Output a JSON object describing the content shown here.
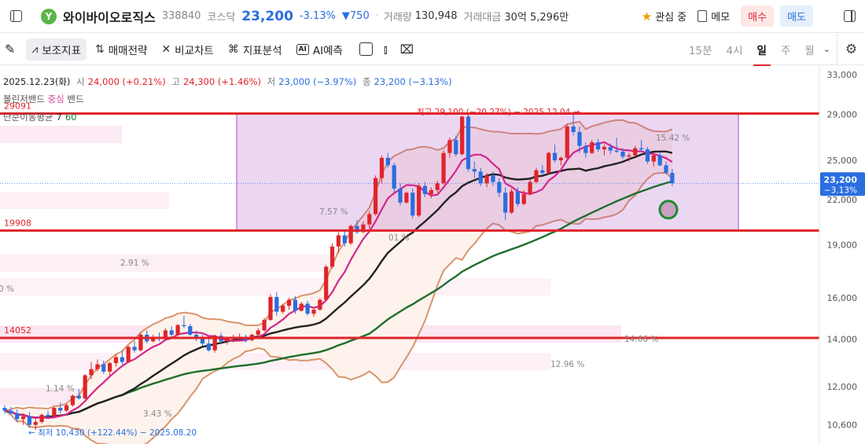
{
  "header": {
    "name": "와이바이오로직스",
    "code": "338840",
    "market": "코스닥",
    "price": "23,200",
    "change_pct": "-3.13%",
    "change_abs": "▼750",
    "volume_label": "거래량",
    "volume": "130,948",
    "amount_label": "거래대금",
    "amount": "30억 5,296만",
    "fav_label": "관심 중",
    "memo_label": "메모",
    "buy_label": "매수",
    "sell_label": "매도"
  },
  "toolbar": {
    "items": [
      "보조지표",
      "매매전략",
      "비교차트",
      "지표분석",
      "AI예측"
    ],
    "ai_badge": "AI",
    "periods": [
      "15분",
      "4시",
      "일",
      "주",
      "월"
    ],
    "active_period": "일"
  },
  "legend": {
    "date": "2025.12.23(화)",
    "open_label": "시",
    "open": "24,000 (+0.21%)",
    "high_label": "고",
    "high": "24,300 (+1.46%)",
    "low_label": "저",
    "low": "23,000 (−3.97%)",
    "close_label": "종",
    "close": "23,200 (−3.13%)",
    "bb_prefix": "볼린저밴드",
    "bb_mid": "중심",
    "bb_suffix": "밴드",
    "ma_label": "단순이동평균",
    "ma_short": "7",
    "ma_long": "60"
  },
  "colors": {
    "up": "#e0242a",
    "down": "#2a6ee0",
    "ma7": "#d4258f",
    "ma20": "#222222",
    "ma60": "#1e6e2c",
    "bb": "#d9946b",
    "box": "#a74bc4",
    "level": "#e0242a"
  },
  "chart_data": {
    "type": "candlestick",
    "ylim": [
      10000,
      33000
    ],
    "y_scale": "log",
    "y_ticks": [
      10600,
      12000,
      14000,
      16000,
      19000,
      22000,
      25000,
      29000,
      33000
    ],
    "y_tick_labels": [
      "10,600",
      "12,000",
      "14,000",
      "16,000",
      "19,000",
      "22,000",
      "25,000",
      "29,000",
      "33,000"
    ],
    "last_price_tag": "23,200",
    "last_change_tag": "−3.13%",
    "levels": [
      {
        "value": 29091,
        "label": "29091"
      },
      {
        "value": 19908,
        "label": "19908"
      },
      {
        "value": 14052,
        "label": "14052"
      }
    ],
    "annotations": [
      {
        "text": "최고 29,100 (−20.27%) − 2025.12.04 →"
      },
      {
        "text": "← 최저 10,430 (+122.44%) − 2025.08.20"
      },
      {
        "text": "15.42 %"
      },
      {
        "text": "7.57 %"
      },
      {
        "text": "2.91 %"
      },
      {
        "text": "14.66 %"
      },
      {
        "text": "12.96 %"
      },
      {
        "text": "1.14 %"
      },
      {
        "text": "3.43 %"
      },
      {
        "text": "0 %"
      },
      {
        "text": "01 %"
      }
    ],
    "candles": [
      [
        11200,
        11300,
        11000,
        11100
      ],
      [
        11100,
        11250,
        10950,
        11000
      ],
      [
        11000,
        11150,
        10700,
        10800
      ],
      [
        10800,
        11000,
        10600,
        10900
      ],
      [
        10900,
        11050,
        10500,
        10600
      ],
      [
        10600,
        10800,
        10430,
        10700
      ],
      [
        10700,
        11000,
        10650,
        10950
      ],
      [
        10950,
        11100,
        10850,
        10900
      ],
      [
        10900,
        11250,
        10850,
        11200
      ],
      [
        11200,
        11400,
        11000,
        11100
      ],
      [
        11100,
        11350,
        11050,
        11300
      ],
      [
        11300,
        11700,
        11250,
        11650
      ],
      [
        11650,
        11900,
        11500,
        11550
      ],
      [
        11550,
        12500,
        11500,
        12450
      ],
      [
        12450,
        13000,
        12300,
        12700
      ],
      [
        12700,
        13100,
        12600,
        12900
      ],
      [
        12900,
        13050,
        12500,
        12600
      ],
      [
        12600,
        13000,
        12450,
        12950
      ],
      [
        12950,
        13300,
        12800,
        13200
      ],
      [
        13200,
        13500,
        12900,
        13000
      ],
      [
        13000,
        13700,
        12950,
        13650
      ],
      [
        13650,
        13900,
        13400,
        13500
      ],
      [
        13500,
        14300,
        13450,
        14200
      ],
      [
        14200,
        14400,
        13800,
        13900
      ],
      [
        13900,
        14200,
        13850,
        14100
      ],
      [
        14100,
        14300,
        13900,
        14000
      ],
      [
        14000,
        14500,
        13950,
        14400
      ],
      [
        14400,
        14600,
        14100,
        14200
      ],
      [
        14200,
        14700,
        14150,
        14650
      ],
      [
        14650,
        15100,
        14500,
        14600
      ],
      [
        14600,
        14700,
        14150,
        14200
      ],
      [
        14200,
        14400,
        13900,
        14050
      ],
      [
        14050,
        14200,
        13700,
        13800
      ],
      [
        13800,
        14000,
        13450,
        13500
      ],
      [
        13500,
        14200,
        13400,
        14150
      ],
      [
        14150,
        14300,
        13800,
        13900
      ],
      [
        13900,
        14100,
        13750,
        14000
      ],
      [
        14000,
        14200,
        13850,
        14050
      ],
      [
        14050,
        14250,
        13900,
        14100
      ],
      [
        14100,
        14200,
        13850,
        13950
      ],
      [
        13950,
        14250,
        13900,
        14200
      ],
      [
        14200,
        14500,
        14100,
        14400
      ],
      [
        14400,
        15000,
        14350,
        14900
      ],
      [
        14900,
        16200,
        14850,
        16050
      ],
      [
        16050,
        16300,
        15100,
        15300
      ],
      [
        15300,
        15700,
        15200,
        15600
      ],
      [
        15600,
        16000,
        15400,
        15900
      ],
      [
        15900,
        16100,
        15200,
        15350
      ],
      [
        15350,
        15800,
        15300,
        15700
      ],
      [
        15700,
        15850,
        15100,
        15200
      ],
      [
        15200,
        15500,
        15050,
        15400
      ],
      [
        15400,
        16000,
        15350,
        15900
      ],
      [
        15900,
        17800,
        15850,
        17700
      ],
      [
        17700,
        19100,
        17600,
        18900
      ],
      [
        18900,
        19800,
        18500,
        19600
      ],
      [
        19600,
        19900,
        18900,
        19100
      ],
      [
        19100,
        20300,
        19000,
        20200
      ],
      [
        20200,
        20600,
        19700,
        19800
      ],
      [
        19800,
        20500,
        19750,
        20300
      ],
      [
        20300,
        21200,
        20000,
        21000
      ],
      [
        21000,
        23800,
        20900,
        23600
      ],
      [
        23600,
        25400,
        23200,
        25200
      ],
      [
        25200,
        25600,
        24400,
        24600
      ],
      [
        24600,
        24800,
        22500,
        22800
      ],
      [
        22800,
        23200,
        21600,
        21800
      ],
      [
        21800,
        22600,
        21700,
        22500
      ],
      [
        22500,
        22800,
        20700,
        20900
      ],
      [
        20900,
        23200,
        20800,
        23000
      ],
      [
        23000,
        23300,
        22200,
        22400
      ],
      [
        22400,
        22900,
        22100,
        22700
      ],
      [
        22700,
        23400,
        22500,
        23200
      ],
      [
        23200,
        25800,
        23100,
        25600
      ],
      [
        25600,
        26900,
        25200,
        26700
      ],
      [
        26700,
        27100,
        25300,
        25500
      ],
      [
        25500,
        28900,
        25400,
        28800
      ],
      [
        28800,
        29100,
        24100,
        24300
      ],
      [
        24300,
        24900,
        23600,
        24100
      ],
      [
        24100,
        24400,
        23000,
        23200
      ],
      [
        23200,
        24000,
        22900,
        23800
      ],
      [
        23800,
        24100,
        23000,
        23300
      ],
      [
        23300,
        23600,
        22200,
        22500
      ],
      [
        22500,
        22900,
        20600,
        21100
      ],
      [
        21100,
        22800,
        21000,
        22600
      ],
      [
        22600,
        22900,
        21500,
        21700
      ],
      [
        21700,
        22700,
        21600,
        22400
      ],
      [
        22400,
        23500,
        22300,
        23300
      ],
      [
        23300,
        24400,
        23200,
        24200
      ],
      [
        24200,
        24600,
        23800,
        24000
      ],
      [
        24000,
        25700,
        23900,
        25600
      ],
      [
        25600,
        26300,
        24800,
        25000
      ],
      [
        25000,
        25300,
        24600,
        25200
      ],
      [
        25200,
        28100,
        25100,
        27900
      ],
      [
        27900,
        29100,
        27100,
        27400
      ],
      [
        27400,
        27900,
        25600,
        26200
      ],
      [
        26200,
        26500,
        25200,
        25600
      ],
      [
        25600,
        26700,
        25500,
        26500
      ],
      [
        26500,
        26800,
        25700,
        25900
      ],
      [
        25900,
        26300,
        25400,
        26100
      ],
      [
        26100,
        26400,
        25500,
        25800
      ],
      [
        25800,
        26900,
        25600,
        25700
      ],
      [
        25700,
        26000,
        25100,
        25300
      ],
      [
        25300,
        25600,
        24900,
        25400
      ],
      [
        25400,
        26200,
        25300,
        26000
      ],
      [
        26000,
        26700,
        25700,
        25900
      ],
      [
        25900,
        26100,
        24700,
        24900
      ],
      [
        24900,
        25600,
        24500,
        25400
      ],
      [
        25400,
        25700,
        24500,
        24600
      ],
      [
        24600,
        24900,
        23900,
        24000
      ],
      [
        24000,
        24300,
        23000,
        23200
      ]
    ]
  }
}
